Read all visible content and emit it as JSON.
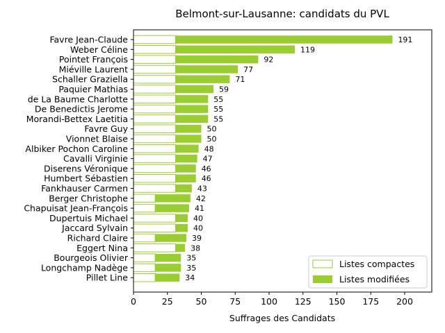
{
  "chart_data": {
    "type": "bar",
    "orientation": "horizontal",
    "stacked": true,
    "title": "Belmont-sur-Lausanne: candidats du PVL",
    "xlabel": "Suffrages des Candidats",
    "ylabel": "",
    "xlim": [
      0,
      220
    ],
    "xticks": [
      0,
      25,
      50,
      75,
      100,
      125,
      150,
      175,
      200
    ],
    "grid": false,
    "legend_position": "bottom-right",
    "colors": {
      "compact_edge": "#9ACD32",
      "compact_fill": "#ffffff",
      "modified": "#9ACD32"
    },
    "categories": [
      "Favre Jean-Claude",
      "Weber Céline",
      "Pointet François",
      "Miéville Laurent",
      "Schaller Graziella",
      "Paquier Mathias",
      "de La Baume Charlotte",
      "De Benedictis Jerome",
      "Morandi-Bettex Laetitia",
      "Favre Guy",
      "Vionnet Blaise",
      "Albiker Pochon Caroline",
      "Cavalli Virginie",
      "Diserens Véronique",
      "Humbert Sébastien",
      "Fankhauser Carmen",
      "Berger Christophe",
      "Chapuisat Jean-François",
      "Dupertuis Michael",
      "Jaccard Sylvain",
      "Richard Claire",
      "Eggert Nina",
      "Bourgeois Olivier",
      "Longchamp Nadège",
      "Pillet Line"
    ],
    "series": [
      {
        "name": "Listes compactes",
        "values": [
          31,
          31,
          31,
          31,
          31,
          31,
          31,
          31,
          31,
          31,
          31,
          31,
          31,
          31,
          31,
          31,
          16,
          16,
          31,
          31,
          16,
          31,
          16,
          16,
          16
        ]
      },
      {
        "name": "Listes modifiées",
        "values": [
          160,
          88,
          61,
          46,
          40,
          28,
          24,
          24,
          24,
          19,
          19,
          17,
          16,
          15,
          15,
          12,
          26,
          25,
          9,
          9,
          23,
          7,
          19,
          19,
          18
        ]
      }
    ],
    "totals": [
      191,
      119,
      92,
      77,
      71,
      59,
      55,
      55,
      55,
      50,
      50,
      48,
      47,
      46,
      46,
      43,
      42,
      41,
      40,
      40,
      39,
      38,
      35,
      35,
      34
    ]
  }
}
